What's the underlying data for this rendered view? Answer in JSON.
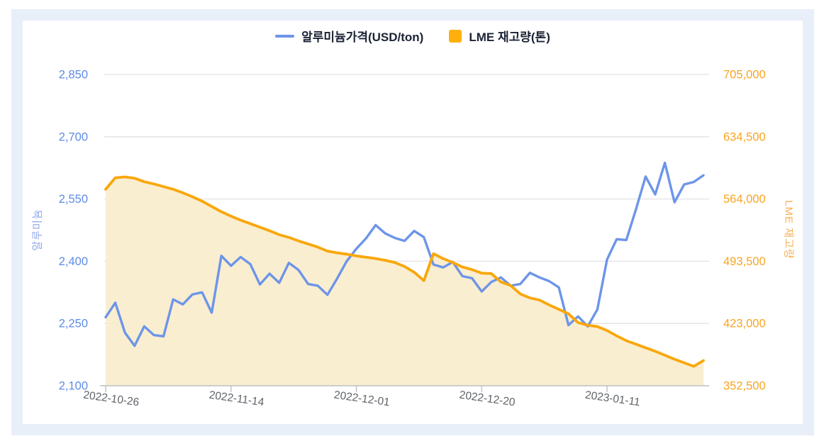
{
  "colors": {
    "panel_bg": "#E8EFF9",
    "card_bg": "#FFFFFF",
    "grid": "#E2E2E2",
    "axis_line": "#BCC0C6",
    "x_label": "#5F6368",
    "legend_text": "#1B2334"
  },
  "legend": {
    "items": [
      {
        "label": "알루미늄가격(USD/ton)",
        "marker": "line",
        "color": "#6D95E8"
      },
      {
        "label": "LME 재고량(톤)",
        "marker": "square",
        "color": "#FFB00E"
      }
    ]
  },
  "chart_data": {
    "type": "line",
    "title": "",
    "legend_position": "top",
    "grid": true,
    "x": [
      "2022-10-26",
      "2022-10-27",
      "2022-10-28",
      "2022-10-31",
      "2022-11-01",
      "2022-11-02",
      "2022-11-03",
      "2022-11-04",
      "2022-11-07",
      "2022-11-08",
      "2022-11-09",
      "2022-11-10",
      "2022-11-11",
      "2022-11-14",
      "2022-11-15",
      "2022-11-16",
      "2022-11-17",
      "2022-11-18",
      "2022-11-21",
      "2022-11-22",
      "2022-11-23",
      "2022-11-24",
      "2022-11-25",
      "2022-11-28",
      "2022-11-29",
      "2022-11-30",
      "2022-12-01",
      "2022-12-02",
      "2022-12-05",
      "2022-12-06",
      "2022-12-07",
      "2022-12-08",
      "2022-12-09",
      "2022-12-12",
      "2022-12-13",
      "2022-12-14",
      "2022-12-15",
      "2022-12-16",
      "2022-12-19",
      "2022-12-20",
      "2022-12-21",
      "2022-12-22",
      "2022-12-23",
      "2022-12-28",
      "2022-12-29",
      "2022-12-30",
      "2023-01-03",
      "2023-01-04",
      "2023-01-05",
      "2023-01-06",
      "2023-01-09",
      "2023-01-10",
      "2023-01-11",
      "2023-01-12",
      "2023-01-13",
      "2023-01-16",
      "2023-01-17",
      "2023-01-18",
      "2023-01-19",
      "2023-01-20",
      "2023-01-23",
      "2023-01-24",
      "2023-01-25"
    ],
    "x_ticks": [
      {
        "label": "2022-10-26",
        "index": 0
      },
      {
        "label": "2022-11-14",
        "index": 13
      },
      {
        "label": "2022-12-01",
        "index": 26
      },
      {
        "label": "2022-12-20",
        "index": 39
      },
      {
        "label": "2023-01-11",
        "index": 52
      }
    ],
    "series": [
      {
        "name": "알루미늄가격(USD/ton)",
        "yaxis": "left",
        "color": "#6D95E8",
        "area": false,
        "values": [
          2265,
          2300,
          2228,
          2196,
          2243,
          2222,
          2219,
          2308,
          2296,
          2320,
          2325,
          2276,
          2413,
          2389,
          2410,
          2393,
          2344,
          2370,
          2348,
          2396,
          2379,
          2345,
          2341,
          2319,
          2358,
          2400,
          2430,
          2455,
          2487,
          2467,
          2456,
          2449,
          2473,
          2458,
          2392,
          2385,
          2398,
          2364,
          2359,
          2327,
          2350,
          2361,
          2341,
          2345,
          2372,
          2361,
          2352,
          2337,
          2246,
          2267,
          2243,
          2284,
          2404,
          2453,
          2451,
          2525,
          2604,
          2561,
          2637,
          2542,
          2585,
          2591,
          2607
        ]
      },
      {
        "name": "LME 재고량(톤)",
        "yaxis": "right",
        "color": "#F9A70B",
        "area": true,
        "fill_color": "rgba(250,237,205,0.92)",
        "values": [
          575000,
          588000,
          589000,
          587500,
          583500,
          581000,
          578000,
          575000,
          571000,
          566500,
          561500,
          555500,
          549500,
          544500,
          540000,
          536000,
          532000,
          528000,
          523500,
          520500,
          516500,
          513000,
          509500,
          505000,
          503000,
          501500,
          499500,
          498000,
          496500,
          494500,
          492000,
          487500,
          481000,
          471500,
          502000,
          496500,
          492000,
          487000,
          484000,
          480000,
          479500,
          470000,
          466000,
          456500,
          452000,
          449500,
          444000,
          439000,
          434000,
          424000,
          421000,
          419500,
          415000,
          409000,
          403500,
          399500,
          395500,
          391500,
          387000,
          382500,
          378500,
          374500,
          381000
        ]
      }
    ],
    "left_axis": {
      "title": "알루미늄",
      "min": 2100,
      "max": 2850,
      "tick_values": [
        2850,
        2700,
        2550,
        2400,
        2250,
        2100
      ],
      "tick_labels": [
        "2,850",
        "2,700",
        "2,550",
        "2,400",
        "2,250",
        "2,100"
      ],
      "color": "#5E8BE6",
      "title_color": "#93A9EC"
    },
    "right_axis": {
      "title": "LME 재고량",
      "min": 352500,
      "max": 705000,
      "tick_values": [
        705000,
        634500,
        564000,
        493500,
        423000,
        352500
      ],
      "tick_labels": [
        "705,000",
        "634,500",
        "564,000",
        "493,500",
        "423,000",
        "352,500"
      ],
      "color": "#F9A423",
      "title_color": "#F6B054"
    }
  }
}
